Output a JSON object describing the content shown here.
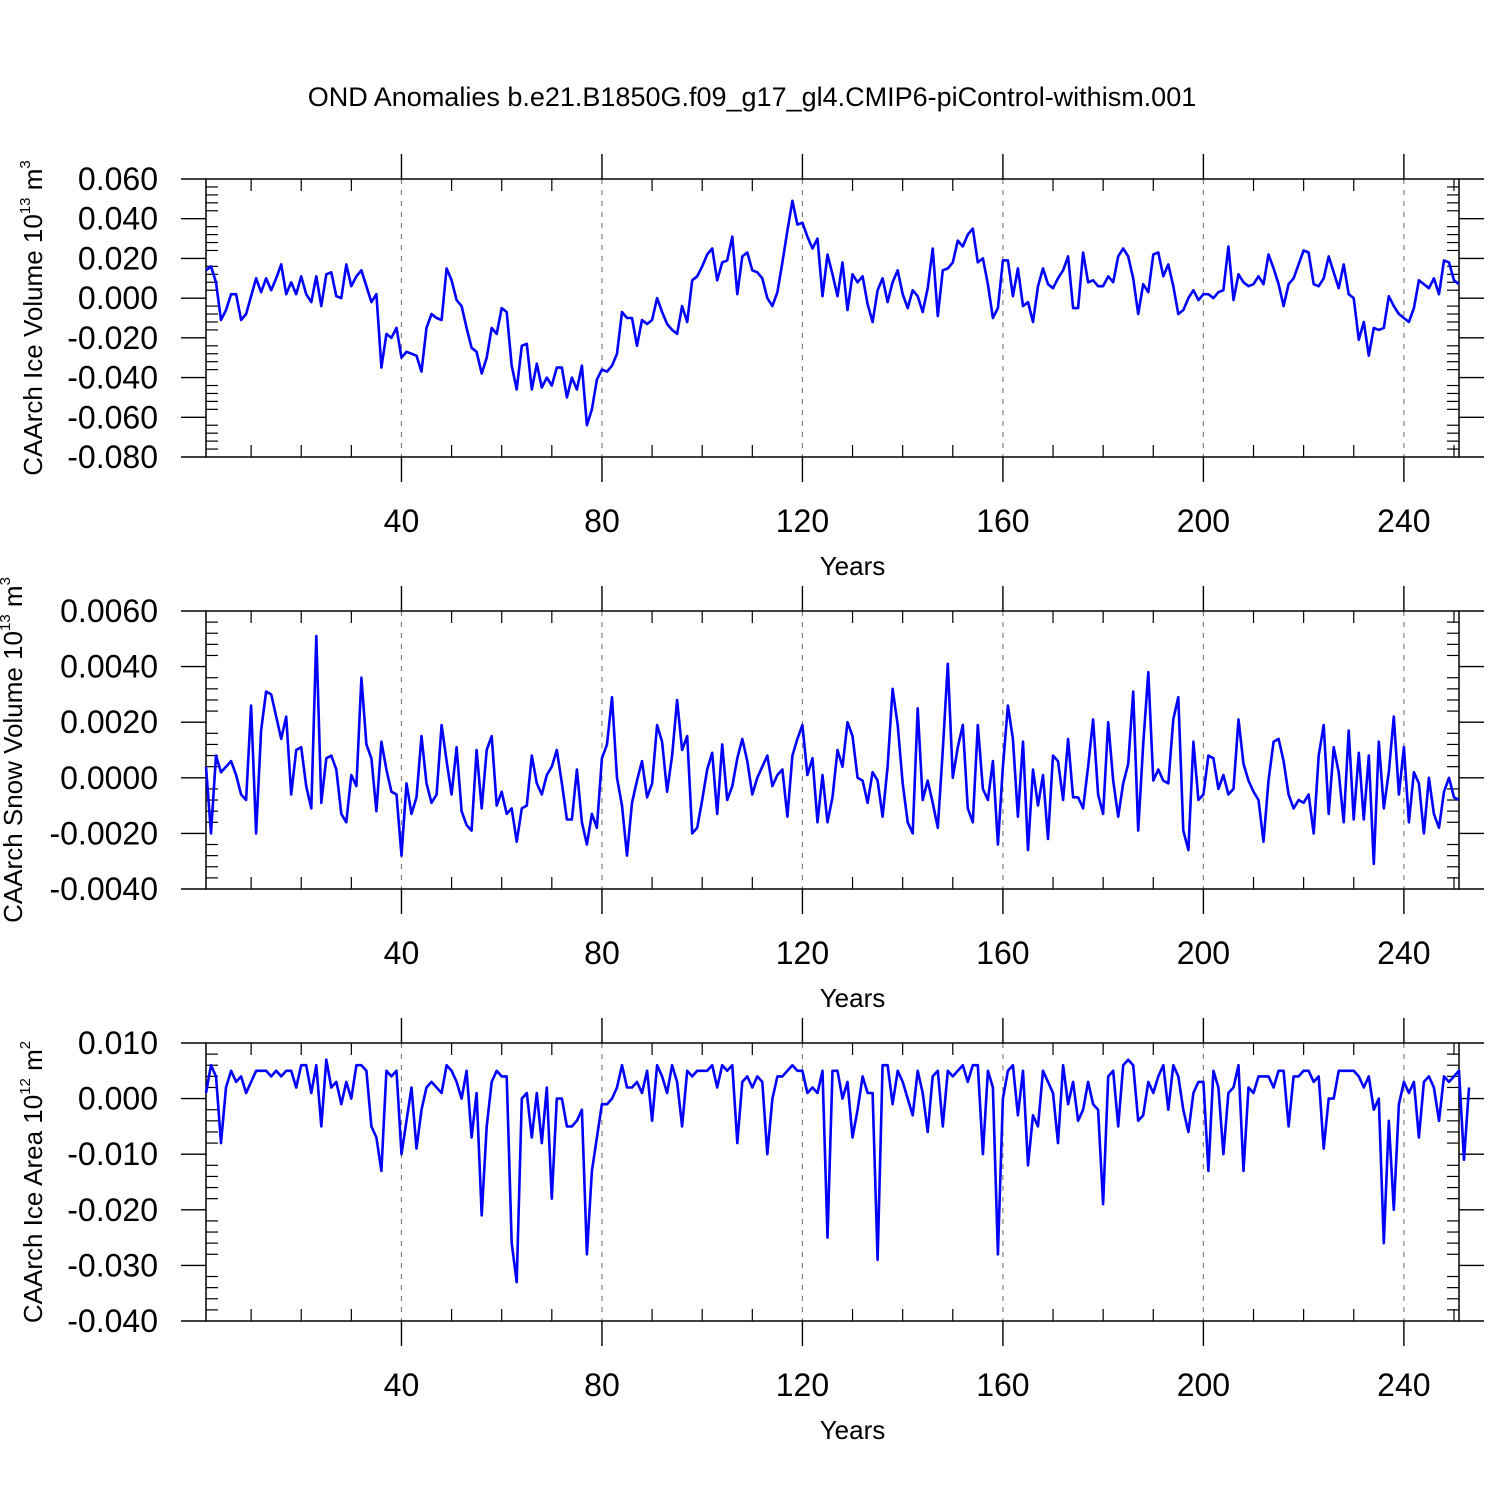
{
  "title": "OND Anomalies b.e21.B1850G.f09_g17_gl4.CMIP6-piControl-withism.001",
  "colors": {
    "line": "#0000ff",
    "axis": "#000000",
    "grid": "#808080"
  },
  "chart_data": [
    {
      "type": "line",
      "ylabel": {
        "text": "CAArch Ice Volume 10",
        "exp": "13",
        "unit": " m",
        "unit_exp": "3"
      },
      "xlabel": "Years",
      "xlim": [
        1,
        251
      ],
      "ylim": [
        -0.08,
        0.06
      ],
      "yticks": [
        0.06,
        0.04,
        0.02,
        0.0,
        -0.02,
        -0.04,
        -0.06,
        -0.08
      ],
      "ytick_labels": [
        "0.060",
        "0.040",
        "0.020",
        "0.000",
        "-0.020",
        "-0.040",
        "-0.060",
        "-0.080"
      ],
      "xticks": [
        40,
        80,
        120,
        160,
        200,
        240
      ],
      "xtick_labels": [
        "40",
        "80",
        "120",
        "160",
        "200",
        "240"
      ],
      "grid_x": true,
      "series": [
        {
          "x_start": 1,
          "values": [
            0.014,
            0.016,
            0.008,
            -0.011,
            -0.006,
            0.002,
            0.002,
            -0.011,
            -0.008,
            0.001,
            0.01,
            0.003,
            0.01,
            0.004,
            0.01,
            0.017,
            0.002,
            0.008,
            0.002,
            0.011,
            0.002,
            -0.002,
            0.011,
            -0.004,
            0.012,
            0.013,
            0.001,
            0.0,
            0.017,
            0.006,
            0.011,
            0.014,
            0.006,
            -0.002,
            0.002,
            -0.035,
            -0.018,
            -0.02,
            -0.015,
            -0.03,
            -0.027,
            -0.028,
            -0.029,
            -0.037,
            -0.015,
            -0.008,
            -0.01,
            -0.011,
            0.015,
            0.009,
            -0.001,
            -0.004,
            -0.015,
            -0.025,
            -0.027,
            -0.038,
            -0.03,
            -0.015,
            -0.018,
            -0.005,
            -0.007,
            -0.034,
            -0.046,
            -0.024,
            -0.023,
            -0.046,
            -0.033,
            -0.045,
            -0.04,
            -0.044,
            -0.035,
            -0.035,
            -0.05,
            -0.04,
            -0.046,
            -0.034,
            -0.064,
            -0.056,
            -0.041,
            -0.036,
            -0.037,
            -0.034,
            -0.028,
            -0.007,
            -0.01,
            -0.01,
            -0.024,
            -0.011,
            -0.013,
            -0.011,
            0.0,
            -0.007,
            -0.013,
            -0.016,
            -0.018,
            -0.004,
            -0.012,
            0.009,
            0.011,
            0.016,
            0.022,
            0.025,
            0.009,
            0.018,
            0.019,
            0.031,
            0.002,
            0.021,
            0.023,
            0.014,
            0.013,
            0.01,
            0.0,
            -0.004,
            0.003,
            0.018,
            0.034,
            0.049,
            0.037,
            0.038,
            0.031,
            0.025,
            0.03,
            0.001,
            0.022,
            0.012,
            0.001,
            0.018,
            -0.006,
            0.012,
            0.008,
            0.011,
            -0.003,
            -0.012,
            0.004,
            0.01,
            -0.002,
            0.008,
            0.014,
            0.002,
            -0.005,
            0.004,
            0.001,
            -0.007,
            0.005,
            0.025,
            -0.009,
            0.014,
            0.015,
            0.018,
            0.029,
            0.026,
            0.032,
            0.035,
            0.018,
            0.02,
            0.007,
            -0.01,
            -0.005,
            0.019,
            0.019,
            0.001,
            0.015,
            -0.004,
            -0.002,
            -0.012,
            0.006,
            0.015,
            0.007,
            0.005,
            0.01,
            0.014,
            0.021,
            -0.005,
            -0.005,
            0.023,
            0.008,
            0.009,
            0.006,
            0.006,
            0.011,
            0.008,
            0.021,
            0.025,
            0.021,
            0.01,
            -0.008,
            0.007,
            0.003,
            0.022,
            0.023,
            0.011,
            0.017,
            0.006,
            -0.008,
            -0.006,
            0.0,
            0.004,
            -0.001,
            0.002,
            0.002,
            0.0,
            0.003,
            0.004,
            0.026,
            -0.001,
            0.012,
            0.008,
            0.006,
            0.007,
            0.011,
            0.007,
            0.022,
            0.015,
            0.007,
            -0.004,
            0.007,
            0.01,
            0.017,
            0.024,
            0.023,
            0.007,
            0.006,
            0.01,
            0.021,
            0.013,
            0.005,
            0.017,
            0.002,
            0.0,
            -0.021,
            -0.012,
            -0.029,
            -0.015,
            -0.016,
            -0.015,
            0.001,
            -0.004,
            -0.008,
            -0.01,
            -0.012,
            -0.005,
            0.009,
            0.007,
            0.005,
            0.01,
            0.002,
            0.019,
            0.018,
            0.009,
            0.007
          ]
        }
      ]
    },
    {
      "type": "line",
      "ylabel": {
        "text": "CAArch Snow Volume 10",
        "exp": "13",
        "unit": " m",
        "unit_exp": "3"
      },
      "xlabel": "Years",
      "xlim": [
        1,
        251
      ],
      "ylim": [
        -0.004,
        0.006
      ],
      "yticks": [
        0.006,
        0.004,
        0.002,
        0.0,
        -0.002,
        -0.004
      ],
      "ytick_labels": [
        "0.0060",
        "0.0040",
        "0.0020",
        "0.0000",
        "-0.0020",
        "-0.0040"
      ],
      "xticks": [
        40,
        80,
        120,
        160,
        200,
        240
      ],
      "xtick_labels": [
        "40",
        "80",
        "120",
        "160",
        "200",
        "240"
      ],
      "grid_x": true,
      "series": [
        {
          "x_start": 1,
          "values": [
            0.0004,
            -0.002,
            0.0008,
            0.0002,
            0.0004,
            0.0006,
            0.0001,
            -0.0006,
            -0.0008,
            0.0026,
            -0.002,
            0.0017,
            0.0031,
            0.003,
            0.0022,
            0.0014,
            0.0022,
            -0.0006,
            0.001,
            0.0011,
            -0.0003,
            -0.0011,
            0.0051,
            -0.0009,
            0.0007,
            0.0008,
            0.0003,
            -0.0013,
            -0.0016,
            0.0001,
            -0.0003,
            0.0036,
            0.0012,
            0.0007,
            -0.0012,
            0.0013,
            0.0003,
            -0.0005,
            -0.0006,
            -0.0028,
            -0.0002,
            -0.0013,
            -0.0007,
            0.0015,
            -0.0002,
            -0.0009,
            -0.0006,
            0.0019,
            0.0006,
            -0.0006,
            0.0011,
            -0.0012,
            -0.0017,
            -0.0019,
            0.001,
            -0.0011,
            0.001,
            0.0015,
            -0.001,
            -0.0005,
            -0.0013,
            -0.0011,
            -0.0023,
            -0.0011,
            -0.001,
            0.0008,
            -0.0002,
            -0.0006,
            0.0001,
            0.0004,
            0.001,
            -0.0002,
            -0.0015,
            -0.0015,
            0.0003,
            -0.0016,
            -0.0024,
            -0.0013,
            -0.0018,
            0.0007,
            0.0012,
            0.0029,
            0.0,
            -0.001,
            -0.0028,
            -0.0009,
            -0.0001,
            0.0006,
            -0.0007,
            -0.0002,
            0.0019,
            0.0013,
            -0.0005,
            0.0008,
            0.0028,
            0.001,
            0.0015,
            -0.002,
            -0.0018,
            -0.0008,
            0.0003,
            0.0009,
            -0.0013,
            0.0012,
            -0.0008,
            -0.0003,
            0.0007,
            0.0014,
            0.0006,
            -0.0006,
            0.0,
            0.0004,
            0.0008,
            -0.0003,
            0.0001,
            0.0003,
            -0.0014,
            0.0008,
            0.0014,
            0.0019,
            0.0001,
            0.0007,
            -0.0016,
            0.0001,
            -0.0016,
            -0.0007,
            0.001,
            0.0004,
            0.002,
            0.0015,
            0.0,
            -0.0001,
            -0.0009,
            0.0002,
            -0.0001,
            -0.0014,
            0.0004,
            0.0032,
            0.0019,
            -0.0002,
            -0.0016,
            -0.002,
            0.0025,
            -0.0008,
            -0.0001,
            -0.0009,
            -0.0018,
            0.001,
            0.0041,
            0.0,
            0.0011,
            0.0019,
            -0.0011,
            -0.0016,
            0.0019,
            -0.0004,
            -0.0008,
            0.0006,
            -0.0024,
            0.0004,
            0.0026,
            0.0014,
            -0.0014,
            0.0013,
            -0.0026,
            0.0003,
            -0.001,
            0.0001,
            -0.0022,
            0.0008,
            0.0006,
            -0.0008,
            0.0014,
            -0.0007,
            -0.0007,
            -0.0011,
            0.0004,
            0.0021,
            -0.0006,
            -0.0013,
            0.002,
            -0.0001,
            -0.0014,
            -0.0002,
            0.0005,
            0.0031,
            -0.0019,
            0.0012,
            0.0038,
            -0.0001,
            0.0003,
            -0.0001,
            -0.0002,
            0.0021,
            0.0029,
            -0.0019,
            -0.0026,
            0.0013,
            -0.0008,
            -0.0006,
            0.0008,
            0.0007,
            -0.0004,
            0.0001,
            -0.0006,
            -0.0004,
            0.0021,
            0.0005,
            -0.0001,
            -0.0005,
            -0.0008,
            -0.0023,
            -0.0001,
            0.0013,
            0.0014,
            0.0006,
            -0.0006,
            -0.0011,
            -0.0008,
            -0.0009,
            -0.0006,
            -0.002,
            0.0008,
            0.0019,
            -0.0013,
            0.0011,
            0.0002,
            -0.0016,
            0.0017,
            -0.0015,
            0.0009,
            -0.0015,
            0.0008,
            -0.0031,
            0.0013,
            -0.0011,
            0.0002,
            0.0022,
            -0.0006,
            0.0011,
            -0.0016,
            0.0002,
            -0.0002,
            -0.002,
            0.0,
            -0.0013,
            -0.0018,
            -0.0005,
            0.0,
            -0.0007,
            -0.0008
          ]
        }
      ]
    },
    {
      "type": "line",
      "ylabel": {
        "text": "CAArch Ice Area 10",
        "exp": "12",
        "unit": " m",
        "unit_exp": "2"
      },
      "xlabel": "Years",
      "xlim": [
        1,
        251
      ],
      "ylim": [
        -0.04,
        0.01
      ],
      "yticks": [
        0.01,
        0.0,
        -0.01,
        -0.02,
        -0.03,
        -0.04
      ],
      "ytick_labels": [
        "0.010",
        "0.000",
        "-0.010",
        "-0.020",
        "-0.030",
        "-0.040"
      ],
      "xticks": [
        40,
        80,
        120,
        160,
        200,
        240
      ],
      "xtick_labels": [
        "40",
        "80",
        "120",
        "160",
        "200",
        "240"
      ],
      "grid_x": true,
      "series": [
        {
          "x_start": 1,
          "values": [
            0.001,
            0.006,
            0.004,
            -0.008,
            0.002,
            0.005,
            0.003,
            0.004,
            0.001,
            0.003,
            0.005,
            0.005,
            0.005,
            0.004,
            0.005,
            0.004,
            0.005,
            0.005,
            0.002,
            0.006,
            0.006,
            0.001,
            0.006,
            -0.005,
            0.007,
            0.002,
            0.003,
            -0.001,
            0.003,
            0.0,
            0.006,
            0.006,
            0.005,
            -0.005,
            -0.007,
            -0.013,
            0.005,
            0.004,
            0.005,
            -0.01,
            -0.004,
            0.002,
            -0.009,
            -0.002,
            0.002,
            0.003,
            0.002,
            0.001,
            0.006,
            0.005,
            0.003,
            0.0,
            0.005,
            -0.007,
            0.001,
            -0.021,
            -0.005,
            0.003,
            0.005,
            0.004,
            0.004,
            -0.026,
            -0.033,
            0.0,
            0.001,
            -0.007,
            0.001,
            -0.008,
            0.002,
            -0.018,
            0.0,
            0.0,
            -0.005,
            -0.005,
            -0.004,
            -0.002,
            -0.028,
            -0.013,
            -0.007,
            -0.001,
            -0.001,
            0.0,
            0.002,
            0.006,
            0.002,
            0.002,
            0.003,
            0.001,
            0.005,
            -0.004,
            0.006,
            0.004,
            0.001,
            0.006,
            0.003,
            -0.005,
            0.005,
            0.004,
            0.005,
            0.005,
            0.005,
            0.006,
            0.002,
            0.006,
            0.005,
            0.006,
            -0.008,
            0.003,
            0.004,
            0.002,
            0.004,
            0.003,
            -0.01,
            0.0,
            0.004,
            0.004,
            0.005,
            0.006,
            0.005,
            0.005,
            0.001,
            0.002,
            0.001,
            0.005,
            -0.025,
            0.005,
            0.005,
            0.0,
            0.003,
            -0.007,
            -0.002,
            0.004,
            0.001,
            0.001,
            -0.029,
            0.006,
            0.006,
            -0.001,
            0.005,
            0.003,
            0.0,
            -0.003,
            0.005,
            0.001,
            -0.006,
            0.004,
            0.005,
            -0.005,
            0.005,
            0.004,
            0.005,
            0.006,
            0.003,
            0.006,
            0.006,
            -0.01,
            0.005,
            0.002,
            -0.028,
            0.0,
            0.005,
            0.006,
            -0.003,
            0.005,
            -0.012,
            -0.003,
            -0.005,
            0.005,
            0.003,
            0.001,
            -0.008,
            0.006,
            -0.001,
            0.003,
            -0.004,
            -0.002,
            0.003,
            -0.001,
            -0.002,
            -0.019,
            0.004,
            0.005,
            -0.005,
            0.006,
            0.007,
            0.006,
            -0.004,
            -0.003,
            0.003,
            0.001,
            0.004,
            0.006,
            -0.002,
            0.006,
            0.004,
            -0.002,
            -0.006,
            0.001,
            0.003,
            0.003,
            -0.013,
            0.005,
            0.002,
            -0.01,
            0.001,
            0.002,
            0.006,
            -0.013,
            0.002,
            0.001,
            0.004,
            0.004,
            0.004,
            0.002,
            0.005,
            0.005,
            -0.005,
            0.004,
            0.004,
            0.005,
            0.005,
            0.003,
            0.004,
            -0.009,
            0.0,
            0.0,
            0.005,
            0.005,
            0.005,
            0.005,
            0.004,
            0.002,
            0.004,
            -0.002,
            0.0,
            -0.026,
            -0.004,
            -0.02,
            -0.001,
            0.003,
            0.001,
            0.003,
            -0.007,
            0.003,
            0.004,
            0.002,
            -0.004,
            0.004,
            0.003,
            0.004,
            0.005,
            -0.011,
            0.002
          ]
        }
      ]
    }
  ]
}
